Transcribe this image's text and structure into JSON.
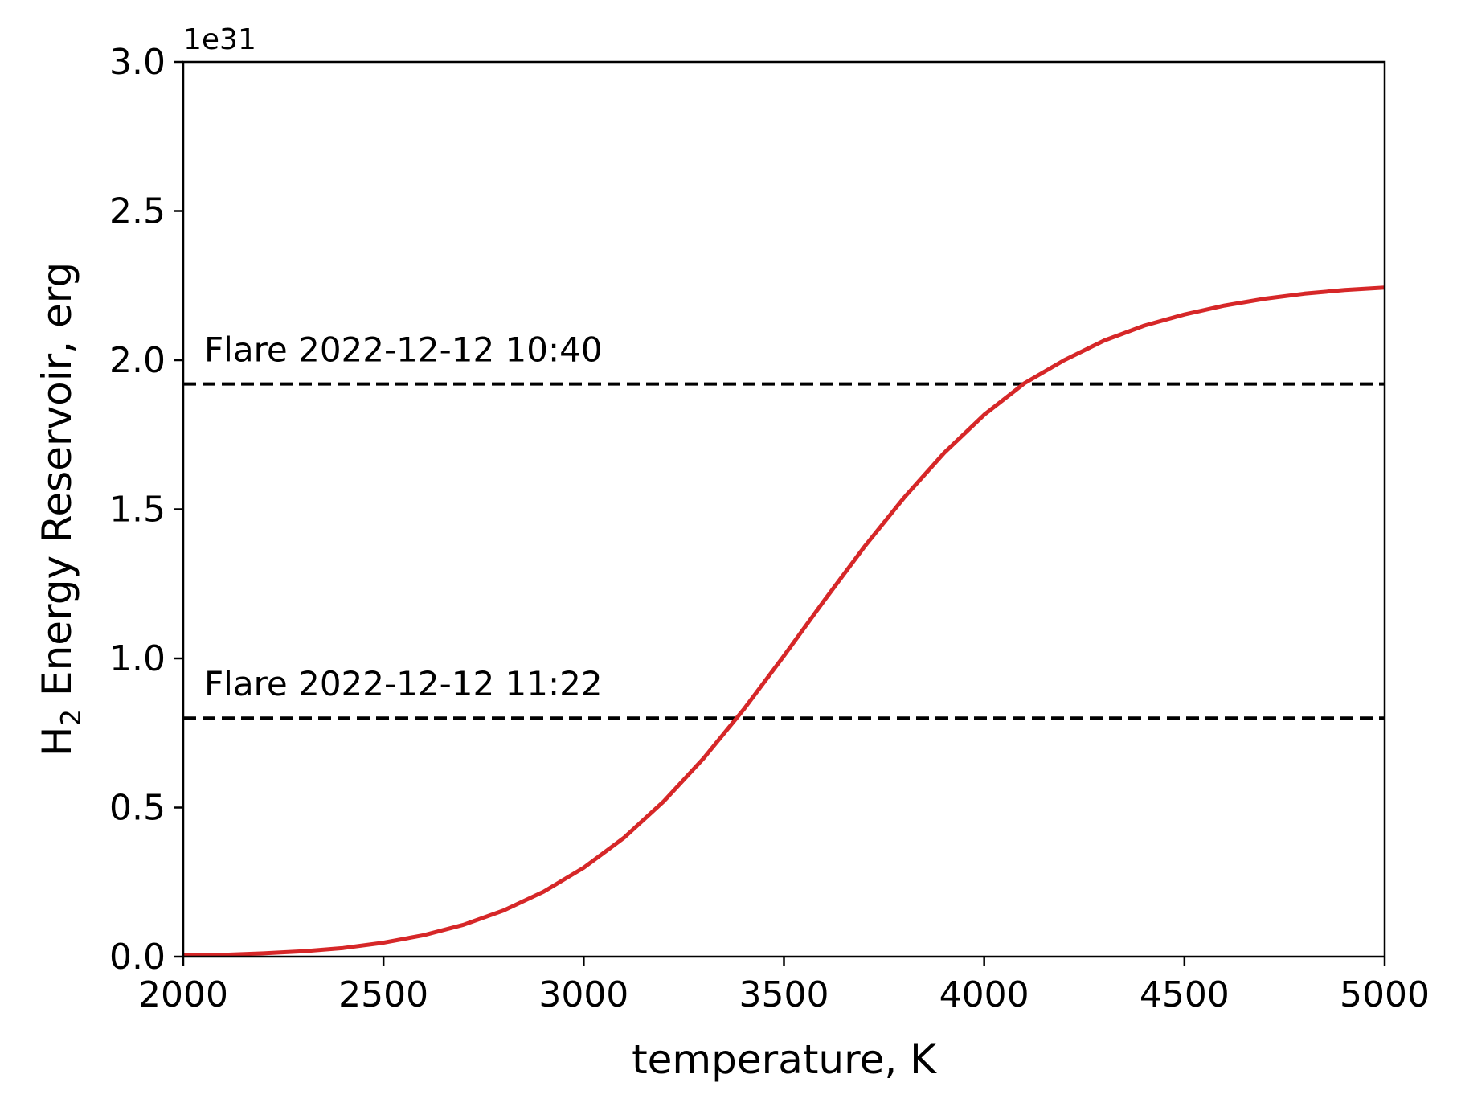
{
  "chart_data": {
    "type": "line",
    "xlabel": "temperature, K",
    "ylabel": {
      "prefix": "H",
      "subscript": "2",
      "suffix": " Energy Reservoir, erg"
    },
    "y_offset_label": "1e31",
    "xlim": [
      2000,
      5000
    ],
    "ylim": [
      0.0,
      3.0
    ],
    "x_ticks": [
      2000,
      2500,
      3000,
      3500,
      4000,
      4500,
      5000
    ],
    "x_tick_labels": [
      "2000",
      "2500",
      "3000",
      "3500",
      "4000",
      "4500",
      "5000"
    ],
    "y_ticks": [
      0.0,
      0.5,
      1.0,
      1.5,
      2.0,
      2.5,
      3.0
    ],
    "y_tick_labels": [
      "0.0",
      "0.5",
      "1.0",
      "1.5",
      "2.0",
      "2.5",
      "3.0"
    ],
    "grid": false,
    "series": [
      {
        "color": "#d62728",
        "x": [
          2000,
          2100,
          2200,
          2300,
          2400,
          2500,
          2600,
          2700,
          2800,
          2900,
          3000,
          3100,
          3200,
          3300,
          3400,
          3500,
          3600,
          3700,
          3800,
          3900,
          4000,
          4100,
          4200,
          4300,
          4400,
          4500,
          4600,
          4700,
          4800,
          4900,
          5000
        ],
        "y": [
          0.004,
          0.006,
          0.011,
          0.018,
          0.029,
          0.047,
          0.072,
          0.107,
          0.155,
          0.218,
          0.298,
          0.398,
          0.521,
          0.666,
          0.83,
          1.009,
          1.193,
          1.373,
          1.539,
          1.689,
          1.817,
          1.922,
          2.0,
          2.066,
          2.116,
          2.153,
          2.183,
          2.206,
          2.223,
          2.235,
          2.243
        ]
      }
    ],
    "reference_lines": [
      {
        "y": 1.92,
        "style": "dashed",
        "color": "#000000",
        "label": "Flare 2022-12-12 10:40"
      },
      {
        "y": 0.8,
        "style": "dashed",
        "color": "#000000",
        "label": "Flare 2022-12-12 11:22"
      }
    ]
  }
}
